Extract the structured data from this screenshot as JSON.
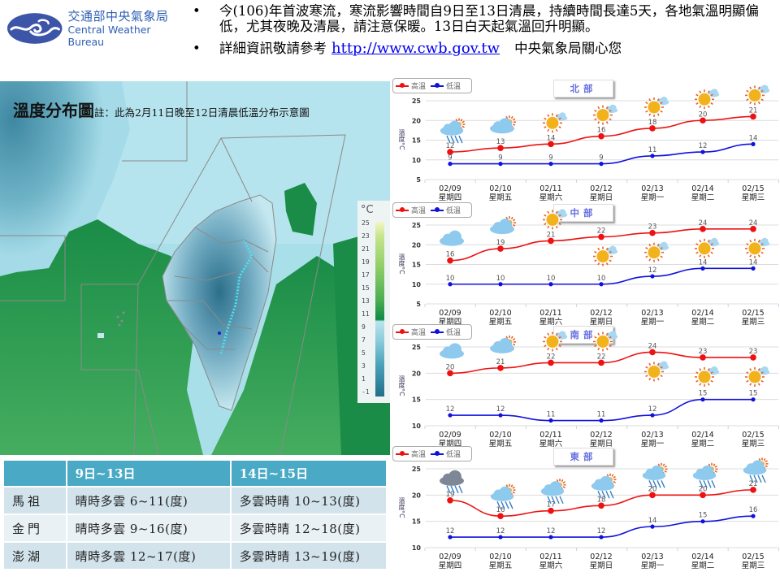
{
  "header": {
    "logo": {
      "name_zh": "交通部中央氣象局",
      "name_en": "Central Weather Bureau",
      "emblem_color": "#3d55a8"
    },
    "bullets": [
      {
        "text": "今(106)年首波寒流，寒流影響時間自9日至13日清晨，持續時間長達5天，各地氣溫明顯偏低，尤其夜晚及清晨，請注意保暖。13日白天起氣溫回升明顯。"
      },
      {
        "prefix": "詳細資訊敬請參考",
        "link": "http://www.cwb.gov.tw",
        "suffix": "中央氣象局關心您"
      }
    ]
  },
  "map": {
    "title": "溫度分布圖",
    "note": "註：此為2月11日晚至12日清晨低溫分布示意圖",
    "legend": {
      "unit": "°C",
      "labels": [
        "25",
        "23",
        "21",
        "19",
        "17",
        "15",
        "13",
        "11",
        "9",
        "7",
        "5",
        "3",
        "1",
        "-1"
      ]
    }
  },
  "islands_table": {
    "headers": [
      "",
      "9日~13日",
      "14日~15日"
    ],
    "rows": [
      {
        "location": "馬祖",
        "period1": "晴時多雲 6~11(度)",
        "period2": "多雲時晴 10~13(度)"
      },
      {
        "location": "金門",
        "period1": "晴時多雲 9~16(度)",
        "period2": "多雲時晴 12~18(度)"
      },
      {
        "location": "澎湖",
        "period1": "晴時多雲 12~17(度)",
        "period2": "多雲時晴 13~19(度)"
      }
    ]
  },
  "legend_labels": {
    "high": "高溫",
    "low": "低溫"
  },
  "y_axis_label": "溫度°C",
  "colors": {
    "high": "#ee1111",
    "low": "#1111dd"
  },
  "chart_data": [
    {
      "type": "line",
      "title": "北部",
      "categories": [
        "02/09",
        "02/10",
        "02/11",
        "02/12",
        "02/13",
        "02/14",
        "02/15"
      ],
      "weekdays": [
        "星期四",
        "星期五",
        "星期六",
        "星期日",
        "星期一",
        "星期二",
        "星期三"
      ],
      "series": [
        {
          "name": "高溫",
          "values": [
            12,
            13,
            14,
            16,
            18,
            20,
            21
          ]
        },
        {
          "name": "低溫",
          "values": [
            9,
            9,
            9,
            9,
            11,
            12,
            14
          ]
        }
      ],
      "weather_icons": [
        "rain-partly-sunny",
        "cloudy-partly-sunny",
        "sunny-cloud",
        "sunny-cloud",
        "sunny-cloud",
        "sunny-cloud",
        "sunny-cloud"
      ],
      "ylabel": "溫度°C",
      "yticks": [
        25,
        20,
        15,
        10,
        5
      ],
      "ylim": [
        5,
        25
      ]
    },
    {
      "type": "line",
      "title": "中部",
      "categories": [
        "02/09",
        "02/10",
        "02/11",
        "02/12",
        "02/13",
        "02/14",
        "02/15"
      ],
      "weekdays": [
        "星期四",
        "星期五",
        "星期六",
        "星期日",
        "星期一",
        "星期二",
        "星期三"
      ],
      "series": [
        {
          "name": "高溫",
          "values": [
            16,
            19,
            21,
            22,
            23,
            24,
            24
          ]
        },
        {
          "name": "低溫",
          "values": [
            10,
            10,
            10,
            10,
            12,
            14,
            14
          ]
        }
      ],
      "weather_icons": [
        "cloudy",
        "cloudy-partly-sunny",
        "sunny-cloud",
        "sunny-cloud",
        "sunny-cloud",
        "sunny-cloud",
        "sunny-cloud"
      ],
      "ylabel": "溫度°C",
      "yticks": [
        25,
        20,
        15,
        10,
        5
      ],
      "ylim": [
        5,
        25
      ]
    },
    {
      "type": "line",
      "title": "南部",
      "categories": [
        "02/09",
        "02/10",
        "02/11",
        "02/12",
        "02/13",
        "02/14",
        "02/15"
      ],
      "weekdays": [
        "星期四",
        "星期五",
        "星期六",
        "星期日",
        "星期一",
        "星期二",
        "星期三"
      ],
      "series": [
        {
          "name": "高溫",
          "values": [
            20,
            21,
            22,
            22,
            24,
            23,
            23
          ]
        },
        {
          "name": "低溫",
          "values": [
            12,
            12,
            11,
            11,
            12,
            15,
            15
          ]
        }
      ],
      "weather_icons": [
        "cloudy",
        "cloudy-partly-sunny",
        "sunny-cloud",
        "sunny-cloud",
        "sunny-cloud",
        "sunny-cloud",
        "sunny-cloud"
      ],
      "ylabel": "溫度°C",
      "yticks": [
        25,
        20,
        15,
        10
      ],
      "ylim": [
        10,
        25
      ]
    },
    {
      "type": "line",
      "title": "東部",
      "categories": [
        "02/09",
        "02/10",
        "02/11",
        "02/12",
        "02/13",
        "02/14",
        "02/15"
      ],
      "weekdays": [
        "星期四",
        "星期五",
        "星期六",
        "星期日",
        "星期一",
        "星期二",
        "星期三"
      ],
      "series": [
        {
          "name": "高溫",
          "values": [
            19,
            16,
            17,
            18,
            20,
            20,
            21
          ]
        },
        {
          "name": "低溫",
          "values": [
            12,
            12,
            12,
            12,
            14,
            15,
            16
          ]
        }
      ],
      "weather_icons": [
        "rain-dark-cloud",
        "rain-partly-sunny",
        "rain-partly-sunny",
        "rain-partly-sunny",
        "rain-partly-sunny",
        "rain-partly-sunny",
        "rain-partly-sunny"
      ],
      "ylabel": "溫度°C",
      "yticks": [
        25,
        20,
        15,
        10
      ],
      "ylim": [
        10,
        25
      ]
    }
  ]
}
